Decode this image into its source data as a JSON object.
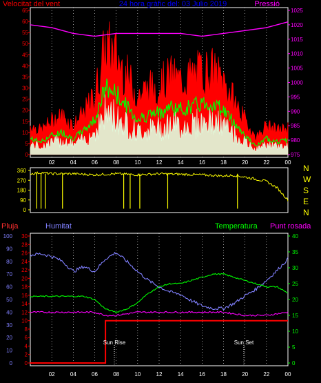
{
  "header": {
    "left": "Velocitat del vent",
    "center": "24 hora gràfic del:  03 Julio 2019",
    "right": "Pressió"
  },
  "panel2": {
    "directions": [
      "N",
      "W",
      "S",
      "E",
      "N"
    ]
  },
  "panel3": {
    "label_pluja": "Pluja",
    "label_humitat": "Humitat",
    "label_temperatura": "Temperatura",
    "label_punt_rosada": "Punt rosada",
    "sun_rise": "Sun Rise",
    "sun_set": "Sun Set"
  },
  "colors": {
    "wind_gust": "#ff0000",
    "wind_avg": "#00ff00",
    "wind_low": "#e0ffe0",
    "pressure": "#ff00ff",
    "direction": "#ffff00",
    "humidity": "#8080ff",
    "temperature": "#00ff00",
    "dew_point": "#ff00ff",
    "rain": "#ff0000",
    "title_blue": "#0000ff"
  },
  "chart_data": [
    {
      "type": "line",
      "x_ticks": [
        "02",
        "04",
        "06",
        "08",
        "10",
        "12",
        "14",
        "16",
        "18",
        "20",
        "22",
        "00"
      ],
      "y_left_ticks": [
        "0",
        "5",
        "10",
        "15",
        "20",
        "25",
        "30",
        "35",
        "40",
        "45",
        "50",
        "55",
        "60",
        "65"
      ],
      "y_right_ticks": [
        "975",
        "980",
        "985",
        "990",
        "995",
        "1000",
        "1005",
        "1010",
        "1015",
        "1020",
        "1025"
      ],
      "ylim_left": [
        0,
        65
      ],
      "ylim_right": [
        975,
        1025
      ],
      "series": [
        {
          "name": "Velocitat del vent",
          "x": [
            0,
            1,
            2,
            3,
            4,
            5,
            6,
            7,
            8,
            9,
            10,
            11,
            12,
            13,
            14,
            15,
            16,
            17,
            18,
            19,
            20,
            21,
            22,
            23,
            24
          ],
          "values": [
            10,
            8,
            12,
            14,
            10,
            15,
            22,
            42,
            38,
            30,
            22,
            25,
            26,
            30,
            28,
            30,
            32,
            32,
            28,
            20,
            12,
            5,
            10,
            8,
            9
          ]
        },
        {
          "name": "Pressió",
          "x": [
            0,
            2,
            4,
            6,
            8,
            10,
            12,
            14,
            16,
            18,
            20,
            22,
            24
          ],
          "values": [
            1020,
            1019,
            1017,
            1016,
            1017,
            1017,
            1017,
            1017,
            1016,
            1017,
            1018,
            1019,
            1021
          ]
        }
      ]
    },
    {
      "type": "line",
      "x_ticks": [
        "02",
        "04",
        "06",
        "08",
        "10",
        "12",
        "14",
        "16",
        "18",
        "20",
        "22",
        "00"
      ],
      "y_ticks": [
        "0",
        "90",
        "180",
        "270",
        "360"
      ],
      "ylim": [
        0,
        360
      ],
      "series": [
        {
          "name": "",
          "x": [
            0,
            1,
            2,
            4,
            6,
            8,
            10,
            12,
            14,
            16,
            18,
            19,
            20,
            21,
            22,
            23,
            24
          ],
          "values": [
            330,
            340,
            330,
            330,
            320,
            330,
            320,
            330,
            325,
            320,
            310,
            315,
            300,
            280,
            260,
            200,
            90
          ]
        }
      ]
    },
    {
      "type": "line",
      "x_ticks": [
        "02",
        "04",
        "06",
        "08",
        "10",
        "12",
        "14",
        "16",
        "18",
        "20",
        "22",
        "00"
      ],
      "y_left_ticks": [
        "0",
        "10",
        "20",
        "30",
        "40",
        "50",
        "60",
        "70",
        "80",
        "90",
        "100"
      ],
      "y_left2_ticks": [
        "0",
        "2",
        "4",
        "6",
        "8",
        "10",
        "12",
        "14",
        "16",
        "18",
        "20",
        "22",
        "24",
        "26",
        "28",
        "30"
      ],
      "y_right_ticks": [
        "0",
        "5",
        "10",
        "15",
        "20",
        "25",
        "30",
        "35",
        "40"
      ],
      "series": [
        {
          "name": "Humitat",
          "x": [
            0,
            1,
            2,
            3,
            4,
            5,
            6,
            7,
            8,
            9,
            10,
            11,
            12,
            13,
            14,
            15,
            16,
            17,
            18,
            19,
            20,
            21,
            22,
            23,
            24
          ],
          "values": [
            85,
            86,
            84,
            80,
            72,
            76,
            72,
            82,
            87,
            80,
            72,
            65,
            60,
            56,
            54,
            49,
            45,
            43,
            43,
            47,
            53,
            58,
            65,
            73,
            82
          ]
        },
        {
          "name": "Temperatura",
          "x": [
            0,
            1,
            2,
            3,
            4,
            5,
            6,
            7,
            8,
            9,
            10,
            11,
            12,
            13,
            14,
            15,
            16,
            17,
            18,
            19,
            20,
            21,
            22,
            23,
            24
          ],
          "values": [
            21,
            21,
            21,
            21,
            21,
            21,
            20,
            17,
            16,
            17,
            19,
            22,
            24,
            25,
            25,
            26,
            27,
            28,
            28,
            27,
            26,
            25,
            24,
            24,
            22
          ]
        },
        {
          "name": "Punt rosada",
          "x": [
            0,
            2,
            4,
            6,
            7,
            8,
            10,
            12,
            14,
            16,
            18,
            20,
            22,
            24
          ],
          "values": [
            16,
            16,
            16,
            16,
            15,
            15,
            16,
            16,
            16,
            16,
            16,
            15,
            15,
            16
          ]
        },
        {
          "name": "Pluja",
          "x": [
            0,
            7,
            7,
            24
          ],
          "values": [
            0,
            0,
            10,
            10
          ]
        }
      ]
    }
  ]
}
